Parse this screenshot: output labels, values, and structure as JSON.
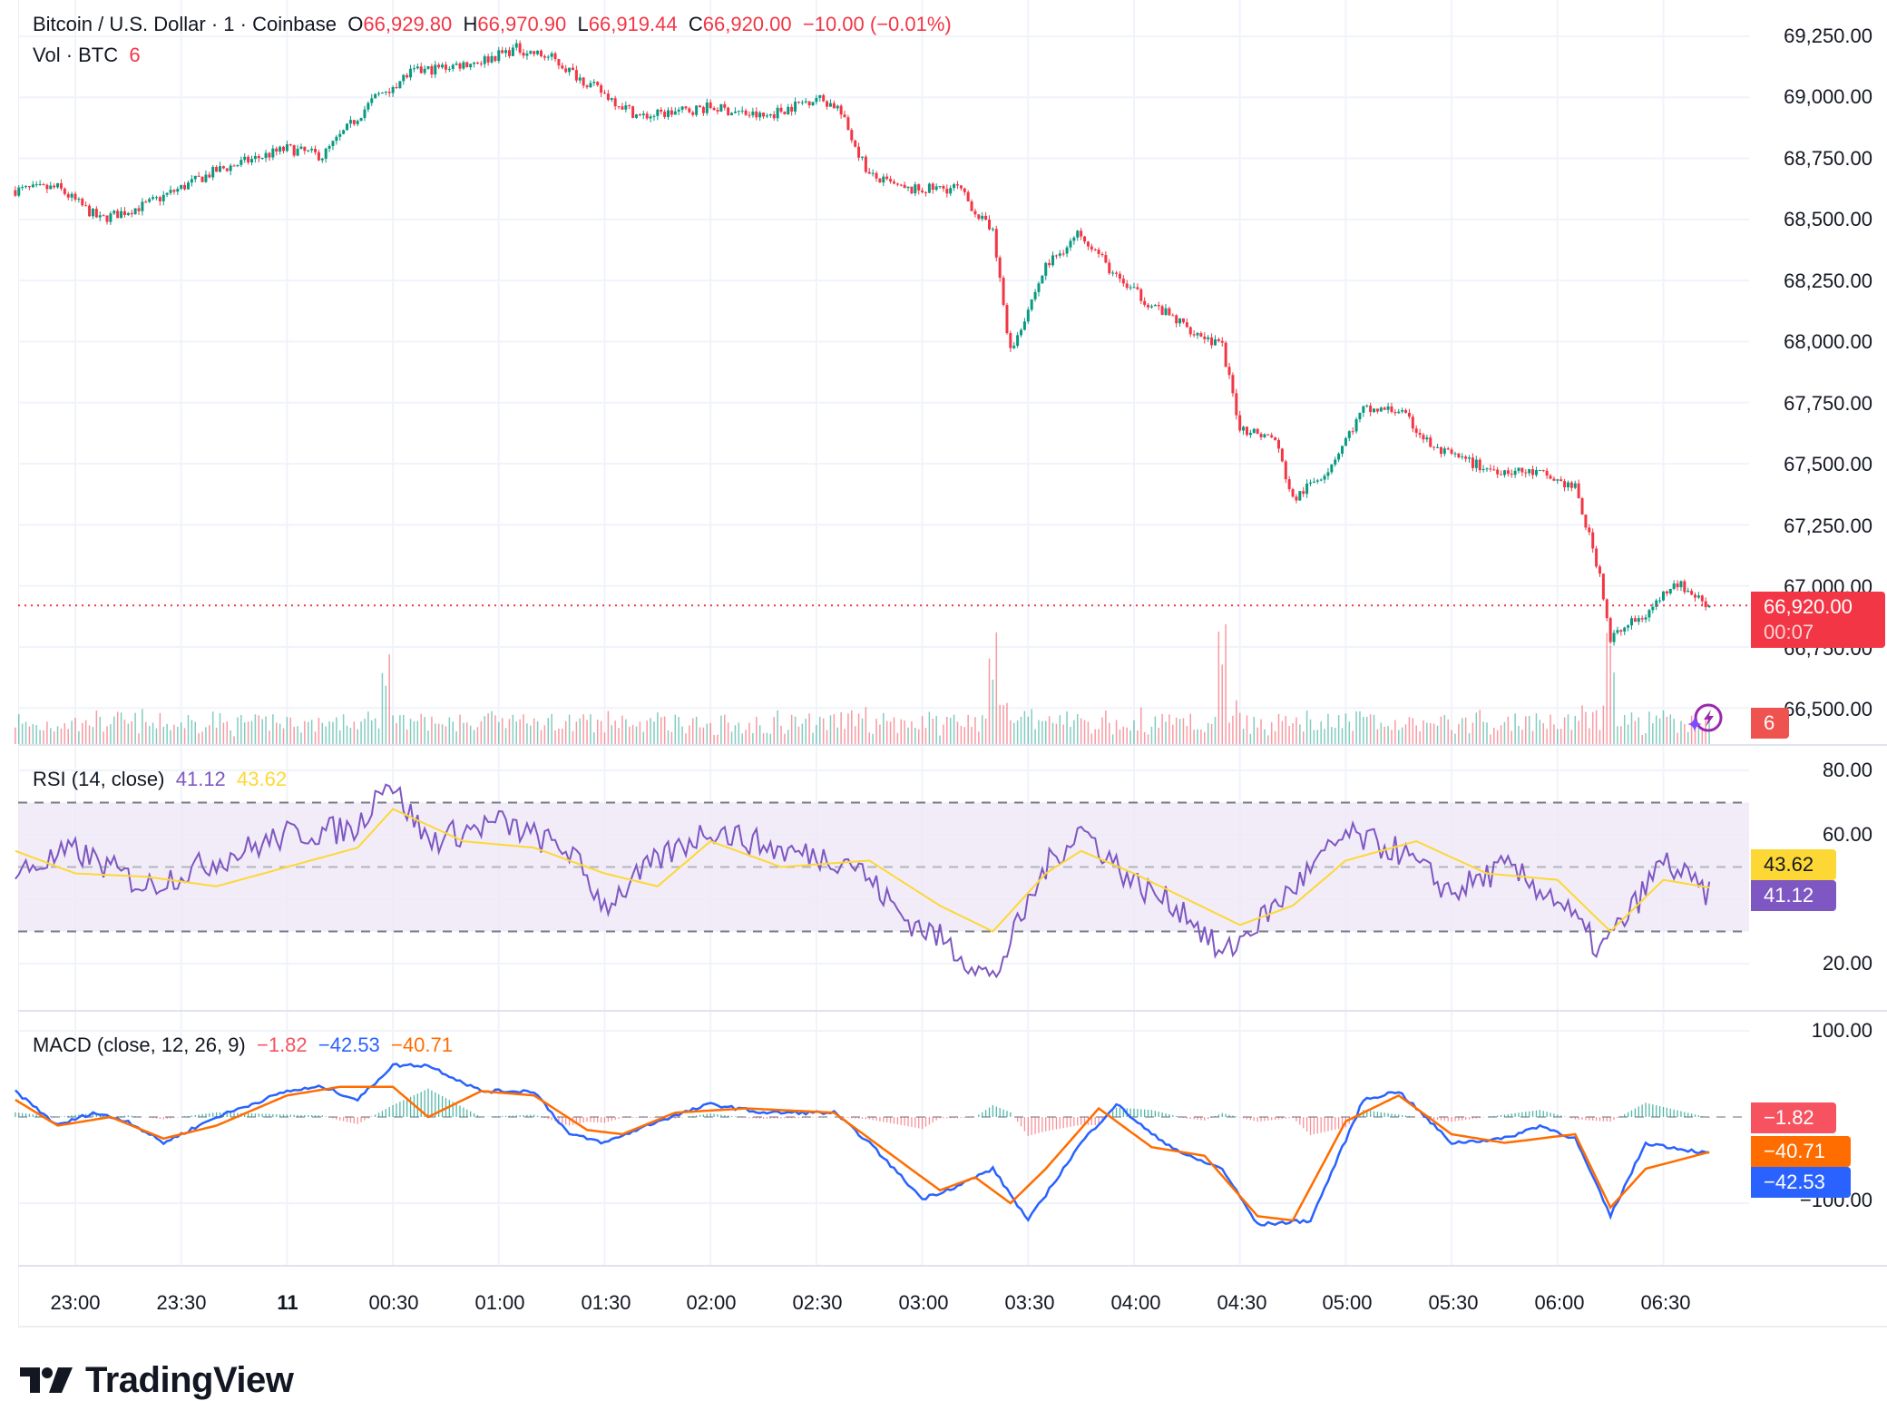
{
  "header": {
    "symbol": "Bitcoin / U.S. Dollar · 1 · Coinbase",
    "open_label": "O",
    "open": "66,929.80",
    "high_label": "H",
    "high": "66,970.90",
    "low_label": "L",
    "low": "66,919.44",
    "close_label": "C",
    "close": "66,920.00",
    "change": "−10.00 (−0.01%)",
    "volume_label": "Vol · BTC",
    "volume": "6"
  },
  "price_axis": {
    "labels": [
      "69,250.00",
      "69,000.00",
      "68,750.00",
      "68,500.00",
      "68,250.00",
      "68,000.00",
      "67,750.00",
      "67,500.00",
      "67,250.00",
      "67,000.00",
      "66,750.00",
      "66,500.00"
    ],
    "current_price": "66,920.00",
    "countdown": "00:07",
    "volume_tag": "6"
  },
  "rsi": {
    "title": "RSI (14, close)",
    "value": "41.12",
    "ma_value": "43.62",
    "axis_labels": [
      "80.00",
      "60.00",
      "20.00"
    ]
  },
  "macd": {
    "title": "MACD (close, 12, 26, 9)",
    "histogram": "−1.82",
    "macd": "−42.53",
    "signal": "−40.71",
    "axis_labels": [
      "100.00",
      "−100.00"
    ]
  },
  "time_axis": {
    "labels": [
      "23:00",
      "23:30",
      "11",
      "00:30",
      "01:00",
      "01:30",
      "02:00",
      "02:30",
      "03:00",
      "03:30",
      "04:00",
      "04:30",
      "05:00",
      "05:30",
      "06:00",
      "06:30"
    ]
  },
  "branding": {
    "logo_text": "TradingView"
  },
  "colors": {
    "up": "#089981",
    "down": "#f23645",
    "rsi": "#7e57c2",
    "rsi_ma": "#fdd835",
    "macd": "#2962ff",
    "signal": "#ff6d00",
    "rsi_band": "#ede7f6"
  },
  "chart_data": [
    {
      "type": "candlestick",
      "title": "Bitcoin / U.S. Dollar · 1 · Coinbase",
      "timeframe": "1 minute",
      "x_range": [
        "22:43",
        "06:43"
      ],
      "ylim": [
        66450,
        69300
      ],
      "ylabel": "USD",
      "price_path_anchors": {
        "time": [
          "22:43",
          "22:55",
          "23:07",
          "23:20",
          "23:40",
          "00:00",
          "00:10",
          "00:25",
          "00:35",
          "00:55",
          "01:05",
          "01:15",
          "01:25",
          "01:40",
          "02:00",
          "02:15",
          "02:30",
          "02:36",
          "02:45",
          "02:55",
          "03:10",
          "03:20",
          "03:25",
          "03:35",
          "03:45",
          "03:55",
          "04:05",
          "04:15",
          "04:25",
          "04:30",
          "04:40",
          "04:45",
          "04:55",
          "05:05",
          "05:15",
          "05:25",
          "05:40",
          "05:55",
          "06:05",
          "06:12",
          "06:15",
          "06:20",
          "06:25",
          "06:33",
          "06:43"
        ],
        "close": [
          68620,
          68630,
          68500,
          68560,
          68700,
          68790,
          68760,
          69000,
          69100,
          69150,
          69200,
          69160,
          69060,
          68920,
          68960,
          68920,
          69000,
          68960,
          68680,
          68620,
          68630,
          68440,
          67960,
          68310,
          68450,
          68260,
          68150,
          68060,
          67980,
          67650,
          67600,
          67350,
          67480,
          67720,
          67720,
          67560,
          67480,
          67460,
          67400,
          67050,
          66780,
          66840,
          66880,
          67020,
          66920
        ]
      },
      "current_price": 66920.0,
      "ohlc_last": {
        "open": 66929.8,
        "high": 66970.9,
        "low": 66919.44,
        "close": 66920.0,
        "change": -10.0,
        "change_pct": -0.01
      }
    },
    {
      "type": "bar",
      "title": "Vol · BTC",
      "last_value": 6,
      "note": "volume spikes near 00:28, 03:20, 04:25 and 06:15"
    },
    {
      "type": "line",
      "title": "RSI (14, close)",
      "ylim": [
        10,
        85
      ],
      "bands": {
        "upper": 70,
        "middle": 50,
        "lower": 30
      },
      "series": [
        {
          "name": "RSI",
          "last": 41.12,
          "time": [
            "22:43",
            "23:00",
            "23:20",
            "23:40",
            "00:00",
            "00:20",
            "00:28",
            "00:40",
            "01:00",
            "01:20",
            "01:30",
            "01:45",
            "02:00",
            "02:20",
            "02:40",
            "02:55",
            "03:05",
            "03:20",
            "03:35",
            "03:45",
            "04:00",
            "04:15",
            "04:25",
            "04:40",
            "05:00",
            "05:15",
            "05:30",
            "05:45",
            "06:00",
            "06:12",
            "06:20",
            "06:30",
            "06:43"
          ],
          "values": [
            48,
            55,
            44,
            52,
            60,
            62,
            78,
            58,
            64,
            55,
            38,
            52,
            62,
            55,
            52,
            34,
            28,
            15,
            50,
            62,
            45,
            36,
            22,
            38,
            60,
            55,
            42,
            50,
            40,
            24,
            35,
            52,
            41
          ]
        },
        {
          "name": "RSI-based MA",
          "last": 43.62,
          "time": [
            "22:43",
            "23:00",
            "23:20",
            "23:40",
            "00:00",
            "00:20",
            "00:30",
            "00:50",
            "01:10",
            "01:30",
            "01:45",
            "02:00",
            "02:20",
            "02:45",
            "03:05",
            "03:20",
            "03:35",
            "03:45",
            "04:00",
            "04:15",
            "04:30",
            "04:45",
            "05:00",
            "05:20",
            "05:40",
            "06:00",
            "06:15",
            "06:30",
            "06:43"
          ],
          "values": [
            55,
            48,
            47,
            44,
            50,
            56,
            68,
            58,
            56,
            48,
            44,
            58,
            50,
            52,
            38,
            30,
            48,
            55,
            48,
            40,
            32,
            38,
            52,
            58,
            48,
            46,
            30,
            46,
            43.62
          ]
        }
      ]
    },
    {
      "type": "line",
      "title": "MACD (close, 12, 26, 9)",
      "ylim": [
        -130,
        120
      ],
      "series": [
        {
          "name": "MACD",
          "last": -42.53,
          "time": [
            "22:43",
            "22:55",
            "23:05",
            "23:15",
            "23:25",
            "23:40",
            "00:00",
            "00:10",
            "00:20",
            "00:30",
            "00:40",
            "00:55",
            "01:10",
            "01:20",
            "01:30",
            "01:45",
            "02:00",
            "02:15",
            "02:35",
            "02:45",
            "03:00",
            "03:10",
            "03:20",
            "03:30",
            "03:45",
            "03:55",
            "04:05",
            "04:15",
            "04:25",
            "04:35",
            "04:50",
            "05:05",
            "05:15",
            "05:30",
            "05:45",
            "05:55",
            "06:05",
            "06:15",
            "06:25",
            "06:43"
          ],
          "values": [
            30,
            -10,
            5,
            -5,
            -30,
            0,
            30,
            35,
            20,
            60,
            60,
            30,
            30,
            -20,
            -30,
            -5,
            15,
            5,
            5,
            -30,
            -95,
            -80,
            -60,
            -120,
            -30,
            15,
            -20,
            -45,
            -60,
            -125,
            -120,
            20,
            30,
            -30,
            -25,
            -10,
            -25,
            -115,
            -30,
            -42.53
          ]
        },
        {
          "name": "Signal",
          "last": -40.71,
          "time": [
            "22:43",
            "22:55",
            "23:10",
            "23:25",
            "23:40",
            "00:00",
            "00:15",
            "00:30",
            "00:40",
            "00:55",
            "01:10",
            "01:25",
            "01:35",
            "01:50",
            "02:10",
            "02:35",
            "02:50",
            "03:05",
            "03:15",
            "03:25",
            "03:35",
            "03:50",
            "04:05",
            "04:20",
            "04:35",
            "04:45",
            "05:00",
            "05:15",
            "05:30",
            "05:45",
            "06:05",
            "06:15",
            "06:25",
            "06:43"
          ],
          "values": [
            20,
            -10,
            0,
            -25,
            -10,
            25,
            35,
            35,
            0,
            30,
            25,
            -15,
            -20,
            5,
            10,
            5,
            -40,
            -85,
            -70,
            -100,
            -60,
            10,
            -35,
            -45,
            -115,
            -120,
            -5,
            25,
            -20,
            -30,
            -20,
            -105,
            -60,
            -40.71
          ]
        },
        {
          "name": "Histogram",
          "last": -1.82
        }
      ]
    }
  ]
}
